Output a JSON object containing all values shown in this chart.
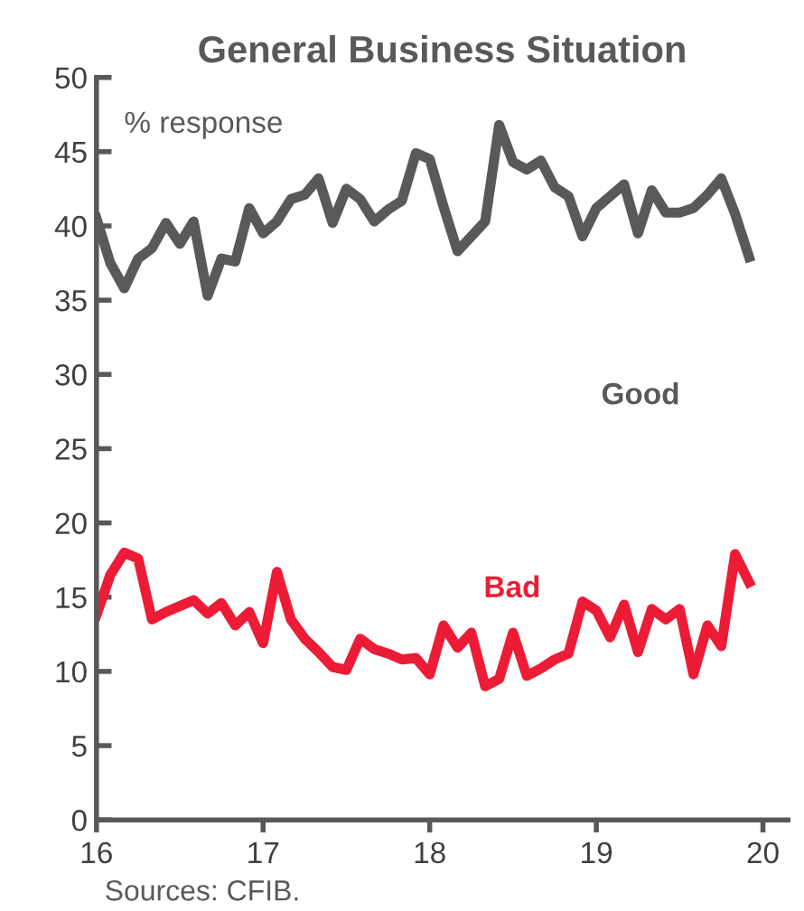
{
  "chart_data": {
    "type": "line",
    "title": "General Business Situation",
    "ylabel": "% response",
    "x": [
      16.0,
      16.083,
      16.167,
      16.25,
      16.333,
      16.417,
      16.5,
      16.583,
      16.667,
      16.75,
      16.833,
      16.917,
      17.0,
      17.083,
      17.167,
      17.25,
      17.333,
      17.417,
      17.5,
      17.583,
      17.667,
      17.75,
      17.833,
      17.917,
      18.0,
      18.083,
      18.167,
      18.25,
      18.333,
      18.417,
      18.5,
      18.583,
      18.667,
      18.75,
      18.833,
      18.917,
      19.0,
      19.083,
      19.167,
      19.25,
      19.333,
      19.417,
      19.5,
      19.583,
      19.667,
      19.75,
      19.833,
      19.917
    ],
    "series": [
      {
        "name": "Good",
        "color": "#595959",
        "values": [
          40.5,
          37.5,
          35.8,
          37.8,
          38.5,
          40.2,
          38.8,
          40.3,
          35.3,
          37.8,
          37.6,
          41.2,
          39.5,
          40.3,
          41.8,
          42.1,
          43.2,
          40.2,
          42.5,
          41.8,
          40.3,
          41.1,
          41.7,
          44.9,
          44.5,
          41.3,
          38.3,
          39.3,
          40.3,
          46.8,
          44.3,
          43.8,
          44.4,
          42.6,
          42.0,
          39.3,
          41.2,
          42.0,
          42.8,
          39.5,
          42.4,
          40.9,
          40.9,
          41.2,
          42.1,
          43.2,
          40.8,
          37.9
        ]
      },
      {
        "name": "Bad",
        "color": "#ed1c36",
        "values": [
          13.8,
          16.5,
          18.0,
          17.6,
          13.5,
          14.0,
          14.4,
          14.8,
          13.9,
          14.6,
          13.1,
          14.0,
          11.9,
          16.7,
          13.5,
          12.2,
          11.3,
          10.3,
          10.1,
          12.2,
          11.5,
          11.2,
          10.8,
          10.9,
          9.8,
          13.1,
          11.6,
          12.6,
          9.0,
          9.5,
          12.6,
          9.7,
          10.2,
          10.8,
          11.2,
          14.7,
          14.1,
          12.3,
          14.5,
          11.3,
          14.2,
          13.5,
          14.2,
          9.8,
          13.1,
          11.7,
          17.9,
          16.0
        ]
      }
    ],
    "xlim": [
      16,
      20.15
    ],
    "xticks": [
      16,
      17,
      18,
      19,
      20
    ],
    "ylim": [
      0,
      50
    ],
    "yticks": [
      0,
      5,
      10,
      15,
      20,
      25,
      30,
      35,
      40,
      45,
      50
    ],
    "grid": false,
    "legend": false,
    "marker": "none",
    "line_style": "solid",
    "annotations": [
      "Sources: CFIB."
    ]
  }
}
